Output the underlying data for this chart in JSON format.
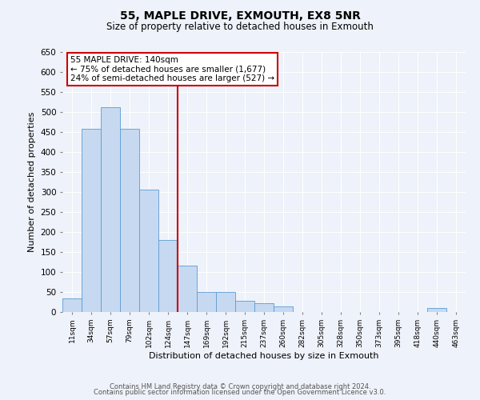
{
  "title1": "55, MAPLE DRIVE, EXMOUTH, EX8 5NR",
  "title2": "Size of property relative to detached houses in Exmouth",
  "xlabel": "Distribution of detached houses by size in Exmouth",
  "ylabel": "Number of detached properties",
  "bin_labels": [
    "11sqm",
    "34sqm",
    "57sqm",
    "79sqm",
    "102sqm",
    "124sqm",
    "147sqm",
    "169sqm",
    "192sqm",
    "215sqm",
    "237sqm",
    "260sqm",
    "282sqm",
    "305sqm",
    "328sqm",
    "350sqm",
    "373sqm",
    "395sqm",
    "418sqm",
    "440sqm",
    "463sqm"
  ],
  "bin_counts": [
    35,
    458,
    512,
    458,
    306,
    181,
    116,
    50,
    50,
    28,
    22,
    14,
    0,
    0,
    0,
    0,
    0,
    0,
    0,
    10,
    0
  ],
  "bar_color": "#c6d9f0",
  "bar_edge_color": "#5b9bd5",
  "vline_color": "#cc0000",
  "ylim": [
    0,
    650
  ],
  "yticks": [
    0,
    50,
    100,
    150,
    200,
    250,
    300,
    350,
    400,
    450,
    500,
    550,
    600,
    650
  ],
  "annotation_title": "55 MAPLE DRIVE: 140sqm",
  "annotation_line1": "← 75% of detached houses are smaller (1,677)",
  "annotation_line2": "24% of semi-detached houses are larger (527) →",
  "annotation_box_color": "#cc0000",
  "footer1": "Contains HM Land Registry data © Crown copyright and database right 2024.",
  "footer2": "Contains public sector information licensed under the Open Government Licence v3.0.",
  "bg_color": "#eef2fa"
}
